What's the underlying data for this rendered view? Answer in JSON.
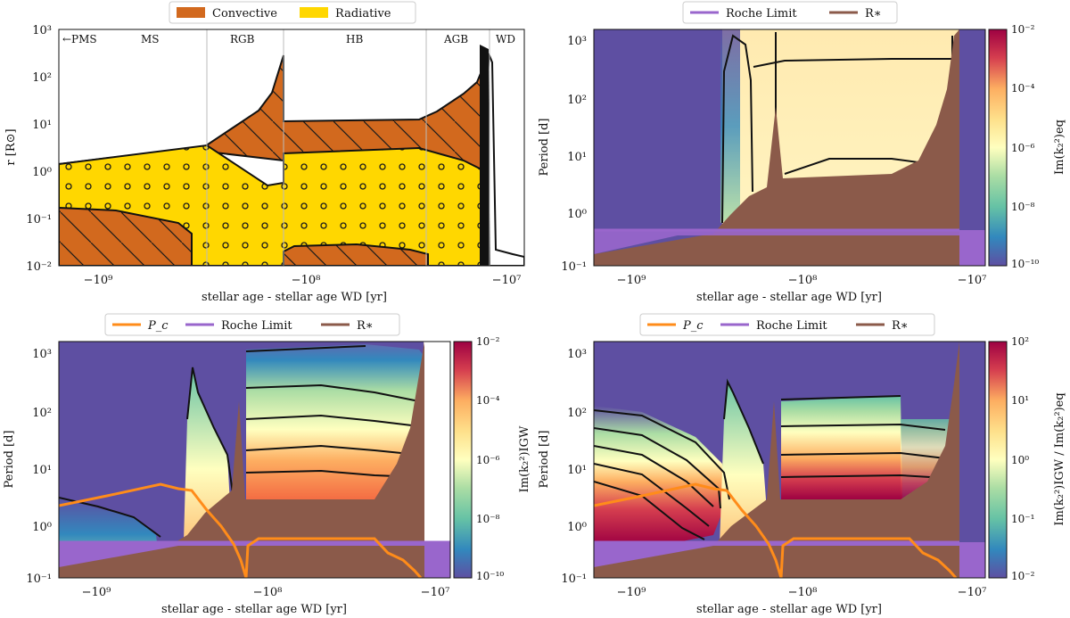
{
  "colors": {
    "convective": "#d2691e",
    "radiative": "#ffd700",
    "roche": "#9966cc",
    "rstar": "#8b5a4a",
    "pc": "#ff8c1a",
    "cmap_low": "#5e4fa2",
    "cmap_high": "#9e0142"
  },
  "panels": [
    {
      "id": "top-left",
      "legend": [
        {
          "label": "Convective",
          "swatch": "convective"
        },
        {
          "label": "Radiative",
          "swatch": "radiative"
        }
      ],
      "xlabel": "stellar age - stellar age WD [yr]",
      "ylabel": "r [R⊙]",
      "xticks": [
        "−10⁹",
        "−10⁸",
        "−10⁷"
      ],
      "yticks": [
        "10³",
        "10²",
        "10¹",
        "10⁰",
        "10⁻¹",
        "10⁻²"
      ],
      "phases": [
        "←PMS",
        "MS",
        "RGB",
        "HB",
        "AGB",
        "WD"
      ]
    },
    {
      "id": "top-right",
      "legend": [
        {
          "label": "Roche Limit",
          "swatch": "roche"
        },
        {
          "label": "R∗",
          "swatch": "rstar"
        }
      ],
      "xlabel": "stellar age - stellar age WD [yr]",
      "ylabel": "Period [d]",
      "xticks": [
        "−10⁹",
        "−10⁸",
        "−10⁷"
      ],
      "yticks": [
        "10³",
        "10²",
        "10¹",
        "10⁰",
        "10⁻¹"
      ],
      "cbar_label": "Im(k₂²)eq",
      "cbar_ticks": [
        "10⁻²",
        "10⁻⁴",
        "10⁻⁶",
        "10⁻⁸",
        "10⁻¹⁰"
      ]
    },
    {
      "id": "bottom-left",
      "legend": [
        {
          "label": "P_c",
          "swatch": "pc"
        },
        {
          "label": "Roche Limit",
          "swatch": "roche"
        },
        {
          "label": "R∗",
          "swatch": "rstar"
        }
      ],
      "xlabel": "stellar age - stellar age WD [yr]",
      "ylabel": "Period [d]",
      "xticks": [
        "−10⁹",
        "−10⁸",
        "−10⁷"
      ],
      "yticks": [
        "10³",
        "10²",
        "10¹",
        "10⁰",
        "10⁻¹"
      ],
      "cbar_label": "Im(k₂²)IGW",
      "cbar_ticks": [
        "10⁻²",
        "10⁻⁴",
        "10⁻⁶",
        "10⁻⁸",
        "10⁻¹⁰"
      ]
    },
    {
      "id": "bottom-right",
      "legend": [
        {
          "label": "P_c",
          "swatch": "pc"
        },
        {
          "label": "Roche Limit",
          "swatch": "roche"
        },
        {
          "label": "R∗",
          "swatch": "rstar"
        }
      ],
      "xlabel": "stellar age - stellar age WD [yr]",
      "ylabel": "Period [d]",
      "xticks": [
        "−10⁹",
        "−10⁸",
        "−10⁷"
      ],
      "yticks": [
        "10³",
        "10²",
        "10¹",
        "10⁰",
        "10⁻¹"
      ],
      "cbar_label": "Im(k₂²)IGW / Im(k₂²)eq",
      "cbar_ticks": [
        "10²",
        "10¹",
        "10⁰",
        "10⁻¹",
        "10⁻²"
      ]
    }
  ],
  "chart_data": [
    {
      "type": "area",
      "x_scale": "symlog-negative",
      "y_scale": "log",
      "xlabel": "stellar age - stellar age WD [yr]",
      "ylabel": "r [R⊙]",
      "ylim": [
        0.01,
        1000
      ],
      "series": [
        {
          "name": "Convective",
          "x": [
            -2000000000.0,
            -300000000.0,
            -40000000.0,
            -15000000.0
          ],
          "y": [
            1.4,
            3,
            10,
            12
          ]
        },
        {
          "name": "Radiative",
          "x": [
            -2000000000.0,
            -300000000.0,
            -50000000.0,
            -12000000.0
          ],
          "y": [
            1.4,
            3,
            2.5,
            0.02
          ]
        }
      ],
      "phases": [
        "←PMS",
        "MS",
        "RGB",
        "HB",
        "AGB",
        "WD"
      ]
    },
    {
      "type": "heatmap",
      "y_scale": "log",
      "xlabel": "stellar age - stellar age WD [yr]",
      "ylabel": "Period [d]",
      "ylim": [
        0.1,
        2000
      ],
      "colorbar": {
        "label": "Im(k₂²)eq",
        "range": [
          1e-10,
          0.01
        ]
      },
      "series": [
        {
          "name": "Roche Limit",
          "y": [
            0.45
          ]
        },
        {
          "name": "R∗",
          "x": [
            -2000000000.0,
            -300000000.0,
            -100000000.0,
            -20000000.0,
            -12000000.0
          ],
          "y": [
            0.17,
            0.45,
            8,
            100,
            1000
          ]
        }
      ]
    },
    {
      "type": "heatmap",
      "y_scale": "log",
      "xlabel": "stellar age - stellar age WD [yr]",
      "ylabel": "Period [d]",
      "ylim": [
        0.1,
        2000
      ],
      "colorbar": {
        "label": "Im(k₂²)IGW",
        "range": [
          1e-10,
          0.01
        ]
      },
      "series": [
        {
          "name": "P_c",
          "x": [
            -2000000000.0,
            -500000000.0,
            -300000000.0,
            -120000000.0,
            -100000000.0,
            -30000000.0,
            -13000000.0
          ],
          "y": [
            2,
            5,
            4,
            0.1,
            1.4,
            1.3,
            0.1
          ]
        },
        {
          "name": "Roche Limit",
          "y": [
            0.45
          ]
        },
        {
          "name": "R∗",
          "x": [
            -2000000000.0,
            -300000000.0,
            -100000000.0,
            -20000000.0,
            -12000000.0
          ],
          "y": [
            0.17,
            0.45,
            8,
            100,
            1000
          ]
        }
      ]
    },
    {
      "type": "heatmap",
      "y_scale": "log",
      "xlabel": "stellar age - stellar age WD [yr]",
      "ylabel": "Period [d]",
      "ylim": [
        0.1,
        2000
      ],
      "colorbar": {
        "label": "Im(k₂²)IGW / Im(k₂²)eq",
        "range": [
          0.01,
          100
        ]
      },
      "series": [
        {
          "name": "P_c",
          "x": [
            -2000000000.0,
            -500000000.0,
            -300000000.0,
            -120000000.0,
            -100000000.0,
            -30000000.0,
            -13000000.0
          ],
          "y": [
            2,
            5,
            4,
            0.1,
            1.4,
            1.3,
            0.1
          ]
        },
        {
          "name": "Roche Limit",
          "y": [
            0.45
          ]
        },
        {
          "name": "R∗",
          "x": [
            -2000000000.0,
            -300000000.0,
            -100000000.0,
            -20000000.0,
            -12000000.0
          ],
          "y": [
            0.17,
            0.45,
            8,
            100,
            1000
          ]
        }
      ]
    }
  ]
}
